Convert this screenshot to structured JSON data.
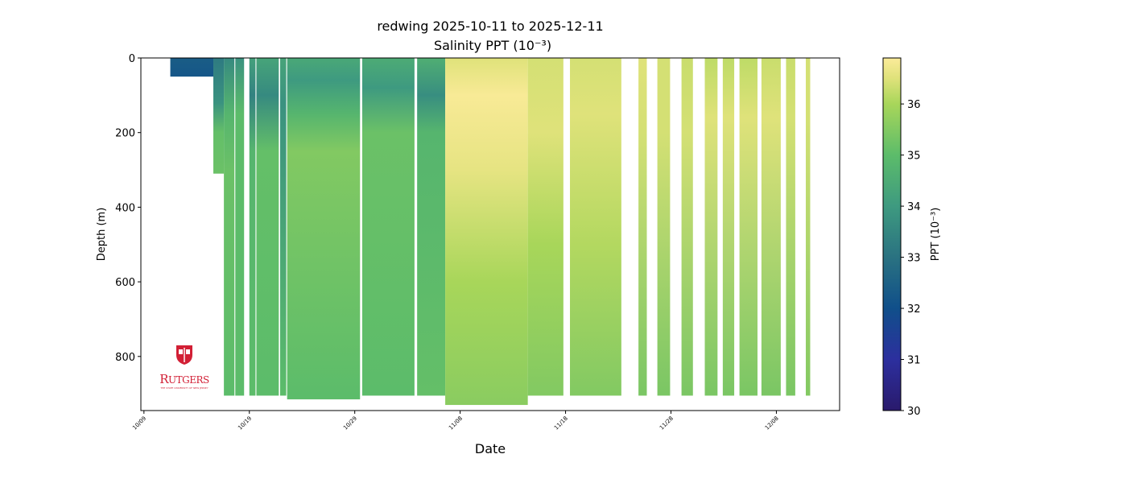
{
  "chart_data": {
    "type": "scatter",
    "title": "redwing 2025-10-11 to 2025-12-11",
    "subtitle": "Salinity PPT (10⁻³)",
    "xlabel": "Date",
    "ylabel": "Depth (m)",
    "colorbar_label": "PPT (10⁻³)",
    "xlim": [
      "2025-10-08T17:00",
      "2025-12-14T00:00"
    ],
    "ylim": [
      945,
      0
    ],
    "y_inverted": true,
    "x_ticks": [
      "2025-10-09",
      "2025-10-19",
      "2025-10-29",
      "2025-11-08",
      "2025-11-18",
      "2025-11-28",
      "2025-12-08"
    ],
    "x_tick_labels": [
      "10/09",
      "10/19",
      "10/29",
      "11/08",
      "11/18",
      "11/28",
      "12/08"
    ],
    "y_ticks": [
      0,
      200,
      400,
      600,
      800
    ],
    "y_tick_labels": [
      "0",
      "200",
      "400",
      "600",
      "800"
    ],
    "colorbar_range": [
      30,
      36.9
    ],
    "colorbar_ticks": [
      30,
      31,
      32,
      33,
      34,
      35,
      36
    ],
    "colorbar_tick_labels": [
      "30",
      "31",
      "32",
      "33",
      "34",
      "35",
      "36"
    ],
    "colormap": [
      [
        30,
        "#2a1a6c"
      ],
      [
        31,
        "#2c2f9e"
      ],
      [
        32,
        "#104f8a"
      ],
      [
        33,
        "#2a7281"
      ],
      [
        34,
        "#3e9a80"
      ],
      [
        35,
        "#5cbc6a"
      ],
      [
        36,
        "#a8d65a"
      ],
      [
        36.5,
        "#dfe27a"
      ],
      [
        36.9,
        "#fbeb9a"
      ]
    ],
    "grid": false,
    "segments": [
      {
        "start": "2025-10-11T12:00",
        "end": "2025-10-15T14:00",
        "max_depth": 50,
        "profile": [
          [
            0,
            32.4
          ],
          [
            50,
            32.2
          ]
        ]
      },
      {
        "start": "2025-10-15T14:00",
        "end": "2025-10-16T14:00",
        "max_depth": 310,
        "profile": [
          [
            0,
            33.2
          ],
          [
            120,
            33.8
          ],
          [
            200,
            35.1
          ],
          [
            310,
            35.2
          ]
        ]
      },
      {
        "start": "2025-10-16T14:00",
        "end": "2025-10-17T14:00",
        "max_depth": 905,
        "profile": [
          [
            0,
            33.6
          ],
          [
            150,
            34.8
          ],
          [
            300,
            35.2
          ],
          [
            905,
            35.0
          ]
        ]
      },
      {
        "start": "2025-10-17T16:00",
        "end": "2025-10-18T12:00",
        "max_depth": 905,
        "profile": [
          [
            0,
            33.8
          ],
          [
            150,
            35.0
          ],
          [
            905,
            35.0
          ]
        ]
      },
      {
        "start": "2025-10-19T00:00",
        "end": "2025-10-19T14:00",
        "max_depth": 905,
        "profile": [
          [
            0,
            34.2
          ],
          [
            100,
            33.4
          ],
          [
            250,
            34.8
          ],
          [
            905,
            35.0
          ]
        ]
      },
      {
        "start": "2025-10-19T16:00",
        "end": "2025-10-21T19:00",
        "max_depth": 905,
        "profile": [
          [
            0,
            34.3
          ],
          [
            100,
            33.6
          ],
          [
            250,
            35.1
          ],
          [
            905,
            35.0
          ]
        ]
      },
      {
        "start": "2025-10-21T22:00",
        "end": "2025-10-22T12:00",
        "max_depth": 905,
        "profile": [
          [
            0,
            34.3
          ],
          [
            120,
            33.8
          ],
          [
            905,
            35.0
          ]
        ]
      },
      {
        "start": "2025-10-22T14:00",
        "end": "2025-10-29T12:00",
        "max_depth": 915,
        "profile": [
          [
            0,
            34.4
          ],
          [
            60,
            34.0
          ],
          [
            150,
            34.8
          ],
          [
            250,
            35.5
          ],
          [
            905,
            35.0
          ]
        ]
      },
      {
        "start": "2025-10-29T17:00",
        "end": "2025-11-03T16:00",
        "max_depth": 905,
        "profile": [
          [
            0,
            34.5
          ],
          [
            80,
            34.0
          ],
          [
            200,
            35.2
          ],
          [
            905,
            35.0
          ]
        ]
      },
      {
        "start": "2025-11-03T22:00",
        "end": "2025-11-06T14:00",
        "max_depth": 905,
        "profile": [
          [
            0,
            34.6
          ],
          [
            100,
            33.7
          ],
          [
            200,
            34.8
          ],
          [
            905,
            35.1
          ]
        ]
      },
      {
        "start": "2025-11-06T14:00",
        "end": "2025-11-14T10:00",
        "max_depth": 930,
        "profile": [
          [
            0,
            36.5
          ],
          [
            100,
            36.85
          ],
          [
            300,
            36.6
          ],
          [
            600,
            36.0
          ],
          [
            930,
            35.6
          ]
        ]
      },
      {
        "start": "2025-11-14T10:00",
        "end": "2025-11-17T19:00",
        "max_depth": 905,
        "profile": [
          [
            0,
            36.4
          ],
          [
            200,
            36.5
          ],
          [
            500,
            36.0
          ],
          [
            905,
            35.5
          ]
        ]
      },
      {
        "start": "2025-11-18T10:00",
        "end": "2025-11-23T07:00",
        "max_depth": 905,
        "profile": [
          [
            0,
            36.4
          ],
          [
            150,
            36.5
          ],
          [
            500,
            36.1
          ],
          [
            905,
            35.5
          ]
        ]
      },
      {
        "start": "2025-11-24T22:00",
        "end": "2025-11-25T17:00",
        "max_depth": 905,
        "profile": [
          [
            0,
            36.5
          ],
          [
            200,
            36.4
          ],
          [
            905,
            35.4
          ]
        ]
      },
      {
        "start": "2025-11-26T17:00",
        "end": "2025-11-27T22:00",
        "max_depth": 905,
        "profile": [
          [
            0,
            36.4
          ],
          [
            200,
            36.4
          ],
          [
            905,
            35.4
          ]
        ]
      },
      {
        "start": "2025-11-29T00:00",
        "end": "2025-11-30T02:00",
        "max_depth": 905,
        "profile": [
          [
            0,
            36.3
          ],
          [
            200,
            36.4
          ],
          [
            905,
            35.4
          ]
        ]
      },
      {
        "start": "2025-12-01T05:00",
        "end": "2025-12-02T10:00",
        "max_depth": 905,
        "profile": [
          [
            0,
            36.2
          ],
          [
            160,
            36.5
          ],
          [
            905,
            35.4
          ]
        ]
      },
      {
        "start": "2025-12-02T22:00",
        "end": "2025-12-04T00:00",
        "max_depth": 905,
        "profile": [
          [
            0,
            36.2
          ],
          [
            160,
            36.5
          ],
          [
            905,
            35.4
          ]
        ]
      },
      {
        "start": "2025-12-04T12:00",
        "end": "2025-12-06T05:00",
        "max_depth": 905,
        "profile": [
          [
            0,
            36.2
          ],
          [
            160,
            36.5
          ],
          [
            905,
            35.4
          ]
        ]
      },
      {
        "start": "2025-12-06T14:00",
        "end": "2025-12-08T10:00",
        "max_depth": 905,
        "profile": [
          [
            0,
            36.3
          ],
          [
            160,
            36.5
          ],
          [
            905,
            35.4
          ]
        ]
      },
      {
        "start": "2025-12-08T22:00",
        "end": "2025-12-09T19:00",
        "max_depth": 905,
        "profile": [
          [
            0,
            36.3
          ],
          [
            160,
            36.4
          ],
          [
            905,
            35.4
          ]
        ]
      },
      {
        "start": "2025-12-10T19:00",
        "end": "2025-12-11T05:00",
        "max_depth": 905,
        "profile": [
          [
            0,
            36.4
          ],
          [
            160,
            36.4
          ],
          [
            905,
            35.5
          ]
        ]
      }
    ]
  },
  "logo": {
    "text": "RUTGERS",
    "subtext": "THE STATE UNIVERSITY OF NEW JERSEY"
  }
}
